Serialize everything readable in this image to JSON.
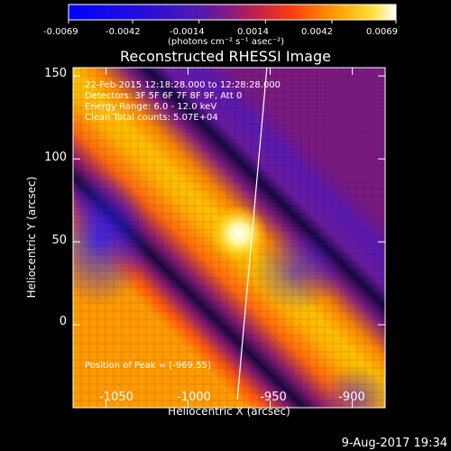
{
  "colorbar": {
    "tick_labels": [
      "-0.0069",
      "-0.0042",
      "-0.0014",
      "0.0014",
      "0.0042",
      "0.0069"
    ],
    "units_label": "(photons cm⁻² s⁻¹ asec⁻²)"
  },
  "image": {
    "title": "Reconstructed RHESSI Image",
    "info_lines": [
      "22-Feb-2015 12:18:28.000 to 12:28:28.000",
      "Detectors: 3F 5F 6F 7F 8F 9F, Att 0",
      "Energy Range: 6.0 - 12.0 keV",
      "Clean     Total counts: 5.07E+04"
    ],
    "peak_label": "Position of Peak = [-969,55]"
  },
  "chart_data": {
    "type": "heatmap",
    "title": "Reconstructed RHESSI Image",
    "xlabel": "Heliocentric X (arcsec)",
    "ylabel": "Heliocentric Y (arcsec)",
    "xlim": [
      -1070,
      -880
    ],
    "ylim": [
      -50,
      155
    ],
    "xticks": [
      -1050,
      -1000,
      -950,
      -900
    ],
    "yticks": [
      0,
      50,
      100,
      150
    ],
    "x_tick_labels": [
      "-1050",
      "-1000",
      "-950",
      "-900"
    ],
    "y_tick_labels": [
      "0",
      "50",
      "100",
      "150"
    ],
    "colorbar_range": [
      -0.0069,
      0.0069
    ],
    "peak": {
      "x": -969,
      "y": 55
    },
    "limb_line": [
      [
        -970,
        -45
      ],
      [
        -952,
        155
      ]
    ]
  },
  "footer": {
    "timestamp": "9-Aug-2017 19:34"
  },
  "colors": {
    "background": "#000000",
    "low": "#0000ff",
    "mid_low": "#6a1fb0",
    "mid_high": "#ff7a00",
    "high": "#ffffff"
  }
}
